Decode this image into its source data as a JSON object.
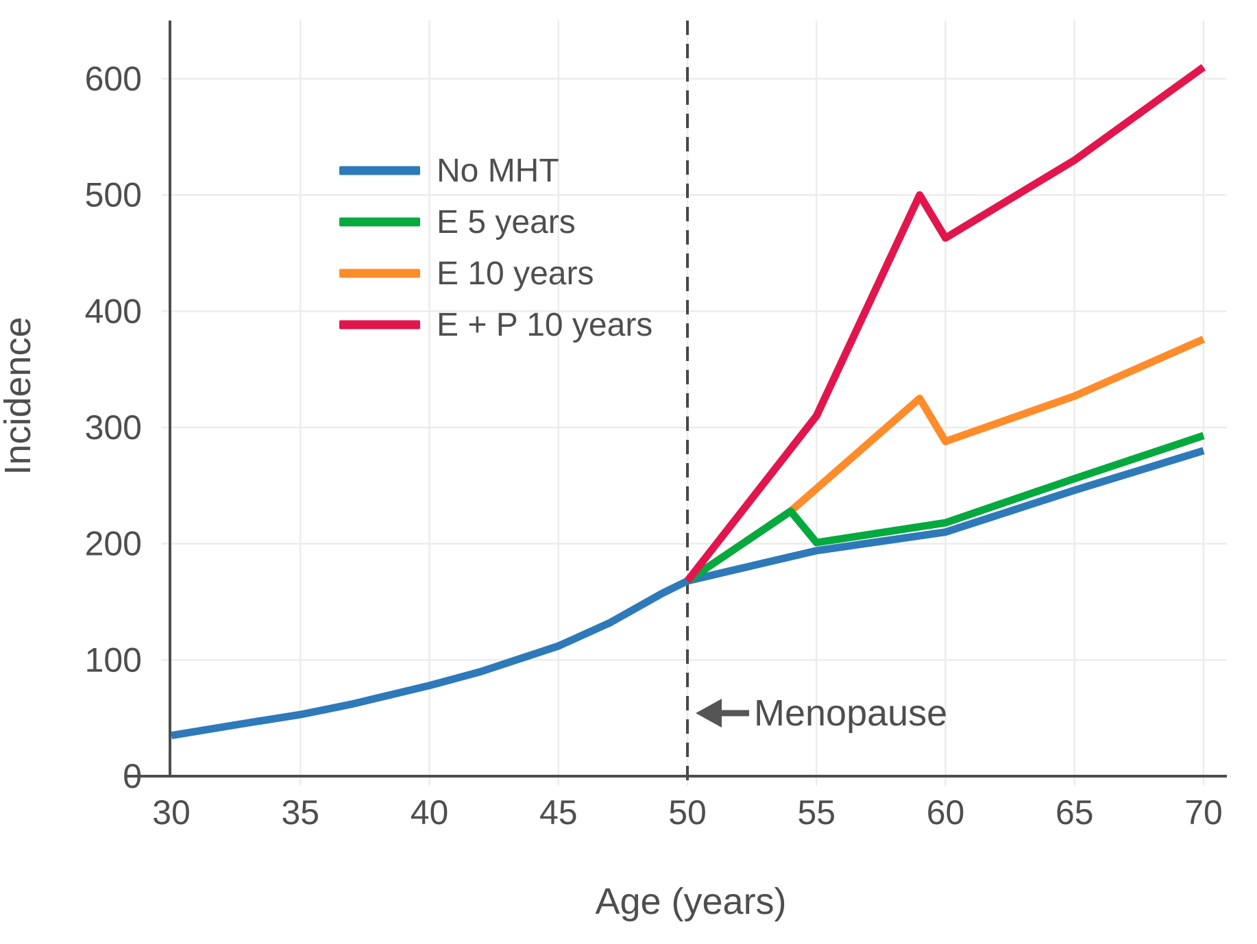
{
  "chart_data": {
    "type": "line",
    "title": "",
    "xlabel": "Age (years)",
    "ylabel": "Incidence",
    "xlim": [
      30,
      70
    ],
    "ylim": [
      0,
      600
    ],
    "x_ticks": [
      30,
      35,
      40,
      45,
      50,
      55,
      60,
      65,
      70
    ],
    "y_ticks": [
      0,
      100,
      200,
      300,
      400,
      500,
      600
    ],
    "grid": true,
    "legend_position": "upper-left-inside",
    "series": [
      {
        "name": "No MHT",
        "color": "#2e79b9",
        "points": [
          [
            30,
            35
          ],
          [
            33,
            46
          ],
          [
            35,
            53
          ],
          [
            37,
            62
          ],
          [
            40,
            78
          ],
          [
            42,
            90
          ],
          [
            45,
            112
          ],
          [
            47,
            132
          ],
          [
            49,
            157
          ],
          [
            50,
            168
          ],
          [
            55,
            194
          ],
          [
            60,
            210
          ],
          [
            65,
            246
          ],
          [
            70,
            280
          ]
        ]
      },
      {
        "name": "E 5 years",
        "color": "#05a93e",
        "points": [
          [
            50,
            168
          ],
          [
            54,
            228
          ],
          [
            55,
            201
          ],
          [
            60,
            218
          ],
          [
            65,
            256
          ],
          [
            70,
            293
          ]
        ]
      },
      {
        "name": "E 10 years",
        "color": "#ff8c2b",
        "points": [
          [
            50,
            168
          ],
          [
            54,
            228
          ],
          [
            59,
            325
          ],
          [
            60,
            288
          ],
          [
            65,
            327
          ],
          [
            70,
            376
          ]
        ]
      },
      {
        "name": "E + P 10 years",
        "color": "#e2164c",
        "points": [
          [
            50,
            168
          ],
          [
            55,
            310
          ],
          [
            59,
            500
          ],
          [
            60,
            463
          ],
          [
            65,
            530
          ],
          [
            70,
            610
          ]
        ]
      }
    ],
    "annotation": {
      "label": "Menopause",
      "x": 50,
      "line_style": "dashed",
      "arrow": "left"
    }
  },
  "colors": {
    "axis": "#4d4d4d",
    "text": "#4e4e4e",
    "grid": "#ececec",
    "dashed_line": "#474747",
    "background": "#ffffff"
  }
}
